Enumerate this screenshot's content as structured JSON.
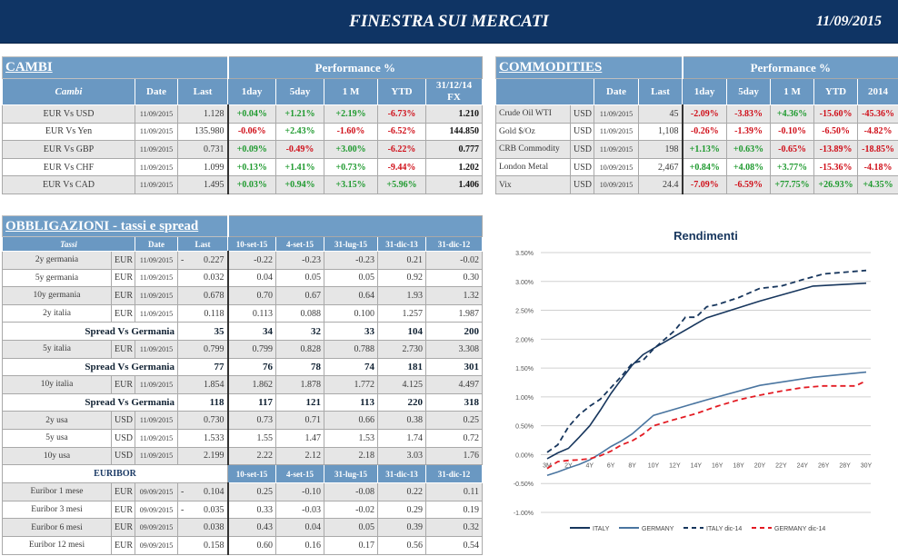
{
  "header": {
    "title": "FINESTRA SUI MERCATI",
    "date": "11/09/2015"
  },
  "colors": {
    "header_bg": "#0f3464",
    "table_header": "#6f9dc6",
    "positive": "#1f9a2f",
    "negative": "#d0101a"
  },
  "cambi": {
    "title": "CAMBI",
    "performance_label": "Performance  %",
    "columns": [
      "Cambi",
      "Date",
      "Last",
      "1day",
      "5day",
      "1 M",
      "YTD",
      "31/12/14 FX"
    ],
    "rows": [
      {
        "name": "EUR Vs USD",
        "date": "11/09/2015",
        "last": "1.128",
        "perf": [
          "+0.04%",
          "+1.21%",
          "+2.19%",
          "-6.73%"
        ],
        "fx": "1.210"
      },
      {
        "name": "EUR Vs Yen",
        "date": "11/09/2015",
        "last": "135.980",
        "perf": [
          "-0.06%",
          "+2.43%",
          "-1.60%",
          "-6.52%"
        ],
        "fx": "144.850"
      },
      {
        "name": "EUR Vs GBP",
        "date": "11/09/2015",
        "last": "0.731",
        "perf": [
          "+0.09%",
          "-0.49%",
          "+3.00%",
          "-6.22%"
        ],
        "fx": "0.777"
      },
      {
        "name": "EUR Vs CHF",
        "date": "11/09/2015",
        "last": "1.099",
        "perf": [
          "+0.13%",
          "+1.41%",
          "+0.73%",
          "-9.44%"
        ],
        "fx": "1.202"
      },
      {
        "name": "EUR Vs CAD",
        "date": "11/09/2015",
        "last": "1.495",
        "perf": [
          "+0.03%",
          "+0.94%",
          "+3.15%",
          "+5.96%"
        ],
        "fx": "1.406"
      }
    ]
  },
  "commodities": {
    "title": "COMMODITIES",
    "performance_label": "Performance  %",
    "columns": [
      "",
      "Date",
      "Last",
      "1day",
      "5day",
      "1 M",
      "YTD",
      "2014"
    ],
    "rows": [
      {
        "name": "Crude Oil WTI",
        "ccy": "USD",
        "date": "11/09/2015",
        "last": "45",
        "perf": [
          "-2.09%",
          "-3.83%",
          "+4.36%",
          "-15.60%",
          "-45.36%"
        ]
      },
      {
        "name": "Gold $/Oz",
        "ccy": "USD",
        "date": "11/09/2015",
        "last": "1,108",
        "perf": [
          "-0.26%",
          "-1.39%",
          "-0.10%",
          "-6.50%",
          "-4.82%"
        ]
      },
      {
        "name": "CRB Commodity",
        "ccy": "USD",
        "date": "11/09/2015",
        "last": "198",
        "perf": [
          "+1.13%",
          "+0.63%",
          "-0.65%",
          "-13.89%",
          "-18.85%"
        ]
      },
      {
        "name": "London Metal",
        "ccy": "USD",
        "date": "10/09/2015",
        "last": "2,467",
        "perf": [
          "+0.84%",
          "+4.08%",
          "+3.77%",
          "-15.36%",
          "-4.18%"
        ]
      },
      {
        "name": "Vix",
        "ccy": "USD",
        "date": "10/09/2015",
        "last": "24.4",
        "perf": [
          "-7.09%",
          "-6.59%",
          "+77.75%",
          "+26.93%",
          "+4.35%"
        ]
      }
    ]
  },
  "bonds": {
    "title": "OBBLIGAZIONI - tassi e spread",
    "columns": [
      "Tassi",
      "Date",
      "Last",
      "10-set-15",
      "4-set-15",
      "31-lug-15",
      "31-dic-13",
      "31-dic-12"
    ],
    "rows": [
      {
        "type": "rate",
        "name": "2y germania",
        "ccy": "EUR",
        "date": "11/09/2015",
        "sign": "-",
        "last": "0.227",
        "vals": [
          "-0.22",
          "-0.23",
          "-0.23",
          "0.21",
          "-0.02"
        ]
      },
      {
        "type": "rate",
        "name": "5y germania",
        "ccy": "EUR",
        "date": "11/09/2015",
        "sign": "",
        "last": "0.032",
        "vals": [
          "0.04",
          "0.05",
          "0.05",
          "0.92",
          "0.30"
        ]
      },
      {
        "type": "rate",
        "name": "10y germania",
        "ccy": "EUR",
        "date": "11/09/2015",
        "sign": "",
        "last": "0.678",
        "vals": [
          "0.70",
          "0.67",
          "0.64",
          "1.93",
          "1.32"
        ]
      },
      {
        "type": "rate",
        "name": "2y italia",
        "ccy": "EUR",
        "date": "11/09/2015",
        "sign": "",
        "last": "0.118",
        "vals": [
          "0.113",
          "0.088",
          "0.100",
          "1.257",
          "1.987"
        ]
      },
      {
        "type": "spread",
        "name": "Spread Vs Germania",
        "last": "35",
        "vals": [
          "34",
          "32",
          "33",
          "104",
          "200"
        ]
      },
      {
        "type": "rate",
        "name": "5y italia",
        "ccy": "EUR",
        "date": "11/09/2015",
        "sign": "",
        "last": "0.799",
        "vals": [
          "0.799",
          "0.828",
          "0.788",
          "2.730",
          "3.308"
        ]
      },
      {
        "type": "spread",
        "name": "Spread Vs Germania",
        "last": "77",
        "vals": [
          "76",
          "78",
          "74",
          "181",
          "301"
        ]
      },
      {
        "type": "rate",
        "name": "10y italia",
        "ccy": "EUR",
        "date": "11/09/2015",
        "sign": "",
        "last": "1.854",
        "vals": [
          "1.862",
          "1.878",
          "1.772",
          "4.125",
          "4.497"
        ]
      },
      {
        "type": "spread",
        "name": "Spread Vs Germania",
        "last": "118",
        "vals": [
          "117",
          "121",
          "113",
          "220",
          "318"
        ]
      },
      {
        "type": "rate",
        "name": "2y usa",
        "ccy": "USD",
        "date": "11/09/2015",
        "sign": "",
        "last": "0.730",
        "vals": [
          "0.73",
          "0.71",
          "0.66",
          "0.38",
          "0.25"
        ]
      },
      {
        "type": "rate",
        "name": "5y usa",
        "ccy": "USD",
        "date": "11/09/2015",
        "sign": "",
        "last": "1.533",
        "vals": [
          "1.55",
          "1.47",
          "1.53",
          "1.74",
          "0.72"
        ]
      },
      {
        "type": "rate",
        "name": "10y usa",
        "ccy": "USD",
        "date": "11/09/2015",
        "sign": "",
        "last": "2.199",
        "vals": [
          "2.22",
          "2.12",
          "2.18",
          "3.03",
          "1.76"
        ]
      }
    ]
  },
  "euribor": {
    "title": "EURIBOR",
    "columns": [
      "10-set-15",
      "4-set-15",
      "31-lug-15",
      "31-dic-13",
      "31-dic-12"
    ],
    "rows": [
      {
        "name": "Euribor 1 mese",
        "ccy": "EUR",
        "date": "09/09/2015",
        "sign": "-",
        "last": "0.104",
        "vals": [
          "0.25",
          "-0.10",
          "-0.08",
          "0.22",
          "0.11"
        ]
      },
      {
        "name": "Euribor 3 mesi",
        "ccy": "EUR",
        "date": "09/09/2015",
        "sign": "-",
        "last": "0.035",
        "vals": [
          "0.33",
          "-0.03",
          "-0.02",
          "0.29",
          "0.19"
        ]
      },
      {
        "name": "Euribor 6 mesi",
        "ccy": "EUR",
        "date": "09/09/2015",
        "sign": "",
        "last": "0.038",
        "vals": [
          "0.43",
          "0.04",
          "0.05",
          "0.39",
          "0.32"
        ]
      },
      {
        "name": "Euribor 12 mesi",
        "ccy": "EUR",
        "date": "09/09/2015",
        "sign": "",
        "last": "0.158",
        "vals": [
          "0.60",
          "0.16",
          "0.17",
          "0.56",
          "0.54"
        ]
      }
    ]
  },
  "chart_data": {
    "type": "line",
    "title": "Rendimenti",
    "xlabel": "",
    "ylabel": "",
    "categories": [
      "3M",
      "1Y",
      "2Y",
      "3Y",
      "4Y",
      "5Y",
      "6Y",
      "7Y",
      "8Y",
      "9Y",
      "10Y",
      "11Y",
      "12Y",
      "13Y",
      "14Y",
      "15Y",
      "16Y",
      "17Y",
      "18Y",
      "19Y",
      "20Y",
      "21Y",
      "22Y",
      "23Y",
      "24Y",
      "25Y",
      "26Y",
      "27Y",
      "28Y",
      "29Y",
      "30Y"
    ],
    "tick_labels": [
      "3M",
      "2Y",
      "4Y",
      "6Y",
      "8Y",
      "10Y",
      "12Y",
      "14Y",
      "16Y",
      "18Y",
      "20Y",
      "22Y",
      "24Y",
      "26Y",
      "28Y",
      "30Y"
    ],
    "y_ticks": [
      "3.50%",
      "3.00%",
      "2.50%",
      "2.00%",
      "1.50%",
      "1.00%",
      "0.50%",
      "0.00%",
      "-0.50%",
      "-1.00%"
    ],
    "ylim": [
      -1.0,
      3.5
    ],
    "grid": true,
    "legend_position": "bottom",
    "series": [
      {
        "name": "ITALY",
        "color": "#17365d",
        "dash": false,
        "x": [
          "3M",
          "1Y",
          "2Y",
          "3Y",
          "4Y",
          "5Y",
          "6Y",
          "7Y",
          "8Y",
          "9Y",
          "10Y",
          "15Y",
          "20Y",
          "25Y",
          "30Y"
        ],
        "values": [
          -0.07,
          0.03,
          0.11,
          0.3,
          0.5,
          0.77,
          1.06,
          1.31,
          1.55,
          1.73,
          1.84,
          2.37,
          2.66,
          2.92,
          2.97
        ]
      },
      {
        "name": "GERMANY",
        "color": "#4a75a0",
        "dash": false,
        "x": [
          "3M",
          "1Y",
          "2Y",
          "3Y",
          "4Y",
          "5Y",
          "6Y",
          "7Y",
          "8Y",
          "9Y",
          "10Y",
          "15Y",
          "20Y",
          "25Y",
          "30Y"
        ],
        "values": [
          -0.36,
          -0.3,
          -0.23,
          -0.17,
          -0.09,
          0.02,
          0.14,
          0.24,
          0.36,
          0.52,
          0.68,
          0.95,
          1.2,
          1.34,
          1.43
        ]
      },
      {
        "name": "ITALY dic-14",
        "color": "#17365d",
        "dash": true,
        "x": [
          "3M",
          "1Y",
          "2Y",
          "3Y",
          "4Y",
          "5Y",
          "6Y",
          "7Y",
          "8Y",
          "9Y",
          "10Y",
          "11Y",
          "12Y",
          "13Y",
          "14Y",
          "15Y",
          "16Y",
          "18Y",
          "20Y",
          "22Y",
          "24Y",
          "26Y",
          "28Y",
          "30Y"
        ],
        "values": [
          0.04,
          0.17,
          0.48,
          0.69,
          0.84,
          0.96,
          1.16,
          1.36,
          1.58,
          1.63,
          1.83,
          1.99,
          2.15,
          2.38,
          2.38,
          2.56,
          2.6,
          2.72,
          2.88,
          2.92,
          3.03,
          3.13,
          3.16,
          3.19
        ]
      },
      {
        "name": "GERMANY dic-14",
        "color": "#e31b23",
        "dash": true,
        "x": [
          "3M",
          "1Y",
          "2Y",
          "3Y",
          "4Y",
          "5Y",
          "6Y",
          "7Y",
          "8Y",
          "9Y",
          "10Y",
          "12Y",
          "14Y",
          "16Y",
          "18Y",
          "20Y",
          "22Y",
          "24Y",
          "26Y",
          "28Y",
          "29Y",
          "30Y"
        ],
        "values": [
          -0.24,
          -0.12,
          -0.1,
          -0.09,
          -0.07,
          -0.02,
          0.06,
          0.17,
          0.24,
          0.35,
          0.5,
          0.61,
          0.71,
          0.84,
          0.95,
          1.03,
          1.1,
          1.16,
          1.19,
          1.19,
          1.19,
          1.28
        ]
      }
    ]
  }
}
